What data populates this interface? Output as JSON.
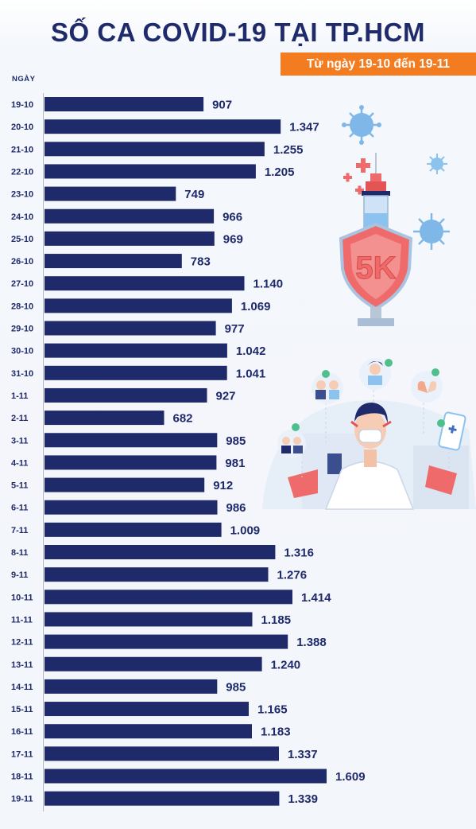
{
  "header": {
    "title": "SỐ CA COVID-19 TẠI TP.HCM",
    "date_range": "Từ ngày 19-10 đến 19-11"
  },
  "illustration": {
    "shield_text": "5K",
    "icons": [
      "virus-icon",
      "syringe-icon",
      "shield-icon",
      "doctor-icon",
      "phone-icon",
      "medical-cross-icon"
    ]
  },
  "colors": {
    "bar": "#1f2a6b",
    "accent": "#f47c20",
    "shield": "#ef6b6b",
    "virus": "#7fb8e8"
  },
  "chart_data": {
    "type": "bar",
    "orientation": "horizontal",
    "ylabel": "NGÀY",
    "categories": [
      "19-10",
      "20-10",
      "21-10",
      "22-10",
      "23-10",
      "24-10",
      "25-10",
      "26-10",
      "27-10",
      "28-10",
      "29-10",
      "30-10",
      "31-10",
      "1-11",
      "2-11",
      "3-11",
      "4-11",
      "5-11",
      "6-11",
      "7-11",
      "8-11",
      "9-11",
      "10-11",
      "11-11",
      "12-11",
      "13-11",
      "14-11",
      "15-11",
      "16-11",
      "17-11",
      "18-11",
      "19-11"
    ],
    "values": [
      907,
      1347,
      1255,
      1205,
      749,
      966,
      969,
      783,
      1140,
      1069,
      977,
      1042,
      1041,
      927,
      682,
      985,
      981,
      912,
      986,
      1009,
      1316,
      1276,
      1414,
      1185,
      1388,
      1240,
      985,
      1165,
      1183,
      1337,
      1609,
      1339
    ],
    "value_labels": [
      "907",
      "1.347",
      "1.255",
      "1.205",
      "749",
      "966",
      "969",
      "783",
      "1.140",
      "1.069",
      "977",
      "1.042",
      "1.041",
      "927",
      "682",
      "985",
      "981",
      "912",
      "986",
      "1.009",
      "1.316",
      "1.276",
      "1.414",
      "1.185",
      "1.388",
      "1.240",
      "985",
      "1.165",
      "1.183",
      "1.337",
      "1.609",
      "1.339"
    ],
    "xlim": [
      0,
      1609
    ],
    "grid": false
  }
}
